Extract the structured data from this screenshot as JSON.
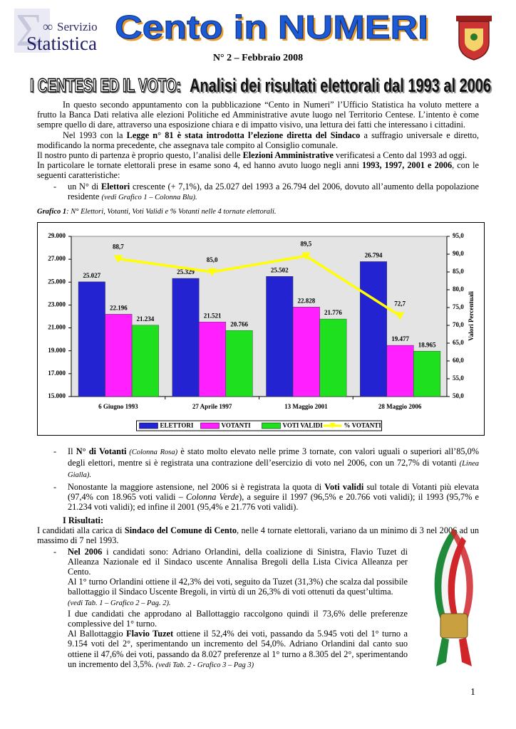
{
  "header": {
    "logo": [
      "Servizio",
      "Statistica"
    ],
    "title": "Cento in NUMERI",
    "issue": "N° 2 – Febbraio 2008",
    "headline": [
      "I CENTESI ED IL VOTO:",
      "Analisi dei risultati elettorali dal 1993 al 2006"
    ]
  },
  "intro": [
    [
      "In questo secondo appuntamento con la pubblicazione “Cento in Numeri” l’Ufficio Statistica ha voluto mettere a frutto la Banca Dati relativa alle elezioni Politiche ed Amministrative avute luogo nel Territorio Centese. L’intento è come sempre quello di dare, attraverso una esposizione chiara e di impatto visivo, una lettura dei fatti che interessano i cittadini."
    ],
    [
      "Nel 1993 con la ",
      "Legge n° 81 è stata introdotta l’elezione diretta del Sindaco",
      " a suffragio universale e diretto, modificando la norma precedente, che assegnava tale compito al Consiglio comunale."
    ],
    [
      "Il nostro punto di partenza è proprio questo, l’analisi delle ",
      "Elezioni Amministrative",
      " verificatesi a Cento dal 1993 ad oggi."
    ],
    [
      "In particolare le tornate elettorali prese in esame sono 4, ed hanno avuto luogo negli anni ",
      "1993, 1997, 2001 e 2006",
      ", con le seguenti caratteristiche:"
    ]
  ],
  "bullet_first": [
    "un N° di ",
    "Elettori",
    " crescente (+ 7,1%), da 25.027 del 1993 a 26.794 del 2006, dovuto all’aumento della popolazione residente ",
    "(vedi Grafico 1 – Colonna Blu)."
  ],
  "caption": [
    "Grafico 1",
    ": N° Elettori, Votanti, Voti Validi e % Votanti nelle 4 tornate elettorali."
  ],
  "chart_data": {
    "type": "bar",
    "categories": [
      "6 Giugno 1993",
      "27 Aprile 1997",
      "13 Maggio 2001",
      "28 Maggio 2006"
    ],
    "series": [
      {
        "name": "ELETTORI",
        "color": "#2323d2",
        "values": [
          25027,
          25329,
          25502,
          26794
        ],
        "value_labels": [
          "25.027",
          "25.329",
          "25.502",
          "26.794"
        ]
      },
      {
        "name": "VOTANTI",
        "color": "#ff1fff",
        "values": [
          22196,
          21521,
          22828,
          19477
        ],
        "value_labels": [
          "22.196",
          "21.521",
          "22.828",
          "19.477"
        ]
      },
      {
        "name": "VOTI VALIDI",
        "color": "#1fe01f",
        "values": [
          21234,
          20766,
          21776,
          18965
        ],
        "value_labels": [
          "21.234",
          "20.766",
          "21.776",
          "18.965"
        ]
      },
      {
        "name": "% VOTANTI",
        "type": "line",
        "axis": "y2",
        "color": "#ffff00",
        "values": [
          88.7,
          85.0,
          89.5,
          72.7
        ],
        "value_labels": [
          "88,7",
          "85,0",
          "89,5",
          "72,7"
        ]
      }
    ],
    "ylim": [
      15000,
      29000
    ],
    "yticks": [
      {
        "value": 15000,
        "label": "15.000"
      },
      {
        "value": 17000,
        "label": "17.000"
      },
      {
        "value": 19000,
        "label": "19.000"
      },
      {
        "value": 21000,
        "label": "21.000"
      },
      {
        "value": 23000,
        "label": "23.000"
      },
      {
        "value": 25000,
        "label": "25.000"
      },
      {
        "value": 27000,
        "label": "27.000"
      },
      {
        "value": 29000,
        "label": "29.000"
      }
    ],
    "y2lim": [
      50,
      95
    ],
    "y2ticks": [
      {
        "value": 50,
        "label": "50,0"
      },
      {
        "value": 55,
        "label": "55,0"
      },
      {
        "value": 60,
        "label": "60,0"
      },
      {
        "value": 65,
        "label": "65,0"
      },
      {
        "value": 70,
        "label": "70,0"
      },
      {
        "value": 75,
        "label": "75,0"
      },
      {
        "value": 80,
        "label": "80,0"
      },
      {
        "value": 85,
        "label": "85,0"
      },
      {
        "value": 90,
        "label": "90,0"
      },
      {
        "value": 95,
        "label": "95,0"
      }
    ],
    "y2label": "Valori Percentuali",
    "grid": false,
    "legend": "bottom"
  },
  "bullets": [
    [
      "Il ",
      "N° di Votanti",
      " (Colonna Rosa)",
      " è stato molto elevato nelle prime 3 tornate, con valori uguali o superiori all’85,0% degli elettori, mentre si è registrata una contrazione dell’esercizio di voto nel 2006, con un 72,7% di votanti ",
      "(Linea Gialla)."
    ],
    [
      "Nonostante la maggiore astensione, nel 2006 si è registrata la quota di ",
      "Voti validi",
      " sul totale di Votanti più elevata (97,4% con 18.965 voti validi – ",
      "Colonna Verde",
      "), a seguire il 1997  (96,5% e 20.766 voti validi);  il 1993 (95,7% e 21.234 voti validi); ed infine il 2001 (95,4% e 21.776 voti validi)."
    ]
  ],
  "results": {
    "heading": "I Risultati:",
    "intro": [
      "I candidati alla carica di ",
      "Sindaco del Comune di Cento",
      ", nelle 4 tornate elettorali, variano da un minimo di 3 nel 2006 ad un massimo di 7 nel 1993."
    ],
    "bullet": [
      "Nel 2006",
      " i candidati sono: Adriano Orlandini, della coalizione di Sinistra, Flavio Tuzet di Alleanza Nazionale ed il Sindaco uscente Annalisa Bregoli della Lista Civica Alleanza per Cento."
    ],
    "details": [
      [
        "Al 1° turno Orlandini ottiene il 42,3% dei voti, seguito da  Tuzet (31,3%) che scalza dal possibile ballottaggio  il Sindaco Uscente Bregoli, in virtù di un  26,3% di voti ottenuti da quest’ultima.",
        "(vedi Tab. 1 – Grafico 2 – Pag. 2)."
      ],
      [
        "I due candidati che approdano al Ballottaggio raccolgono quindi il 73,6% delle preferenze complessive del 1° turno."
      ],
      [
        "Al Ballottaggio ",
        "Flavio Tuzet",
        " ottiene il 52,4% dei voti, passando da 5.945 voti del 1° turno a 9.154 voti del 2°, sperimentando un incremento del 54,0%. Adriano Orlandini dal canto suo ottiene il 47,6% dei voti, passando da 8.027 preferenze al 1° turno a 8.305 del 2°,  sperimentando un incremento del 3,5%. ",
        "(vedi Tab. 2 - Grafico 3 – Pag 3)"
      ]
    ]
  },
  "page_number": "1"
}
